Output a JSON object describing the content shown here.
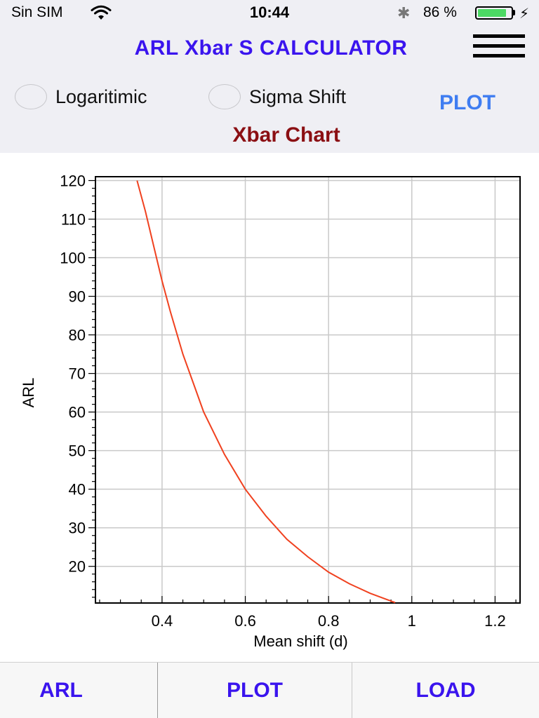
{
  "status_bar": {
    "carrier": "Sin SIM",
    "time": "10:44",
    "battery_text": "86 %",
    "battery_level": 0.86,
    "battery_color": "#4cd964",
    "icons": [
      "wifi-icon",
      "bluetooth-icon",
      "battery-icon",
      "charging-icon"
    ]
  },
  "header": {
    "title": "ARL Xbar S CALCULATOR",
    "title_color": "#3a14ee",
    "menu_icon": "hamburger-menu-icon"
  },
  "options": {
    "logaritimic_label": "Logaritimic",
    "logaritimic_checked": false,
    "sigma_shift_label": "Sigma Shift",
    "sigma_shift_checked": false,
    "plot_label": "PLOT",
    "plot_color": "#3f7df1"
  },
  "chart_title": "Xbar Chart",
  "chart_title_color": "#8b0f13",
  "chart_data": {
    "type": "line",
    "title": "Xbar Chart",
    "xlabel": "Mean shift (d)",
    "ylabel": "ARL",
    "xlim": [
      0.24,
      1.26
    ],
    "ylim": [
      10.5,
      121
    ],
    "x_ticks": [
      0.4,
      0.6,
      0.8,
      1,
      1.2
    ],
    "x_tick_labels": [
      "0.4",
      "0.6",
      "0.8",
      "1",
      "1.2"
    ],
    "y_ticks": [
      20,
      30,
      40,
      50,
      60,
      70,
      80,
      90,
      100,
      110,
      120
    ],
    "y_tick_labels": [
      "20",
      "30",
      "40",
      "50",
      "60",
      "70",
      "80",
      "90",
      "100",
      "110",
      "120"
    ],
    "grid": true,
    "legend": false,
    "series": [
      {
        "color": "#f0411f",
        "x": [
          0.34,
          0.36,
          0.38,
          0.4,
          0.42,
          0.45,
          0.48,
          0.5,
          0.55,
          0.6,
          0.65,
          0.7,
          0.75,
          0.8,
          0.85,
          0.9,
          0.96
        ],
        "y": [
          120,
          112,
          103,
          94,
          86,
          75,
          66,
          60,
          49,
          40,
          33,
          27,
          22.5,
          18.5,
          15.5,
          13,
          10.6
        ]
      }
    ]
  },
  "tabs": [
    {
      "label": "ARL"
    },
    {
      "label": "PLOT"
    },
    {
      "label": "LOAD"
    }
  ]
}
